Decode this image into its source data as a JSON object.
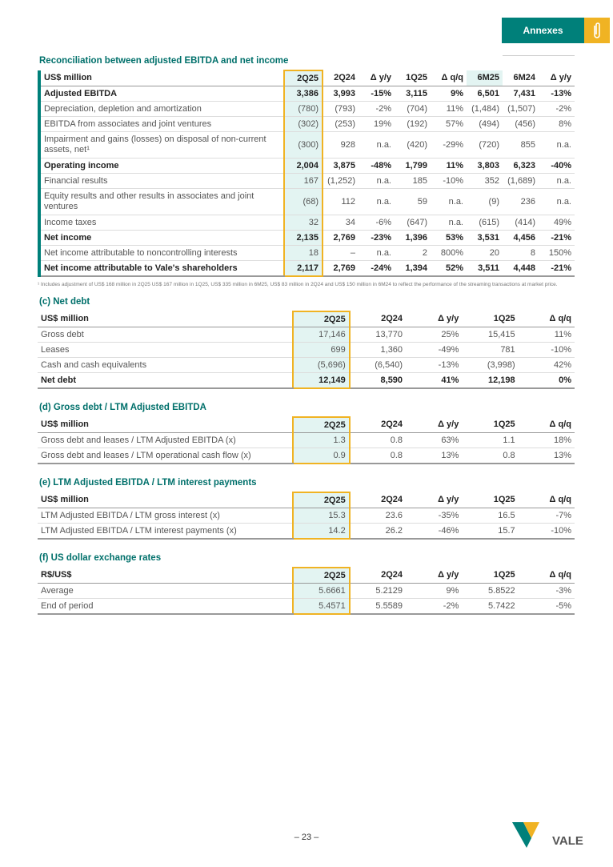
{
  "header": {
    "tab": "Annexes"
  },
  "sections": [
    {
      "title": "Reconciliation between adjusted EBITDA and net income",
      "columns": [
        "US$ million",
        "2Q25",
        "2Q24",
        "Δ y/y",
        "1Q25",
        "Δ q/q",
        "6M25",
        "6M24",
        "Δ y/y"
      ],
      "rows": [
        [
          "Adjusted EBITDA",
          "3,386",
          "3,993",
          "-15%",
          "3,115",
          "9%",
          "6,501",
          "7,431",
          "-13%"
        ],
        [
          "Depreciation, depletion and amortization",
          "(780)",
          "(793)",
          "-2%",
          "(704)",
          "11%",
          "(1,484)",
          "(1,507)",
          "-2%"
        ],
        [
          "EBITDA from associates and joint ventures",
          "(302)",
          "(253)",
          "19%",
          "(192)",
          "57%",
          "(494)",
          "(456)",
          "8%"
        ],
        [
          "Impairment and gains (losses) on disposal of non-current assets, net¹",
          "(300)",
          "928",
          "n.a.",
          "(420)",
          "-29%",
          "(720)",
          "855",
          "n.a."
        ],
        [
          "Operating income",
          "2,004",
          "3,875",
          "-48%",
          "1,799",
          "11%",
          "3,803",
          "6,323",
          "-40%"
        ],
        [
          "Financial results",
          "167",
          "(1,252)",
          "n.a.",
          "185",
          "-10%",
          "352",
          "(1,689)",
          "n.a."
        ],
        [
          "Equity results and other results in associates and joint ventures",
          "(68)",
          "112",
          "n.a.",
          "59",
          "n.a.",
          "(9)",
          "236",
          "n.a."
        ],
        [
          "Income taxes",
          "32",
          "34",
          "-6%",
          "(647)",
          "n.a.",
          "(615)",
          "(414)",
          "49%"
        ],
        [
          "Net income",
          "2,135",
          "2,769",
          "-23%",
          "1,396",
          "53%",
          "3,531",
          "4,456",
          "-21%"
        ],
        [
          "Net income attributable to noncontrolling interests",
          "18",
          "–",
          "n.a.",
          "2",
          "800%",
          "20",
          "8",
          "150%"
        ],
        [
          "Net income attributable to Vale's shareholders",
          "2,117",
          "2,769",
          "-24%",
          "1,394",
          "52%",
          "3,511",
          "4,448",
          "-21%"
        ]
      ],
      "footnote": "¹ Includes adjustment of US$ 168 million in 2Q25 US$ 167 million in 1Q25, US$ 335 million in 6M25, US$ 83 million in 2Q24 and US$ 150 million in 6M24 to reflect the performance of the streaming transactions at market price."
    },
    {
      "title": "(c) Net debt",
      "columns": [
        "US$ million",
        "2Q25",
        "2Q24",
        "Δ y/y",
        "1Q25",
        "Δ q/q"
      ],
      "rows": [
        [
          "Gross debt",
          "17,146",
          "13,770",
          "25%",
          "15,415",
          "11%"
        ],
        [
          "Leases",
          "699",
          "1,360",
          "-49%",
          "781",
          "-10%"
        ],
        [
          "Cash and cash equivalents",
          "(5,696)",
          "(6,540)",
          "-13%",
          "(3,998)",
          "42%"
        ],
        [
          "Net debt",
          "12,149",
          "8,590",
          "41%",
          "12,198",
          "0%"
        ]
      ]
    },
    {
      "title": "(d) Gross debt / LTM Adjusted EBITDA",
      "columns": [
        "US$ million",
        "2Q25",
        "2Q24",
        "Δ y/y",
        "1Q25",
        "Δ q/q"
      ],
      "rows": [
        [
          "Gross debt and leases / LTM Adjusted EBITDA (x)",
          "1.3",
          "0.8",
          "63%",
          "1.1",
          "18%"
        ],
        [
          "Gross debt and leases / LTM operational cash flow (x)",
          "0.9",
          "0.8",
          "13%",
          "0.8",
          "13%"
        ]
      ]
    },
    {
      "title": "(e) LTM Adjusted EBITDA / LTM interest payments",
      "columns": [
        "US$ million",
        "2Q25",
        "2Q24",
        "Δ y/y",
        "1Q25",
        "Δ q/q"
      ],
      "rows": [
        [
          "LTM Adjusted EBITDA / LTM gross interest (x)",
          "15.3",
          "23.6",
          "-35%",
          "16.5",
          "-7%"
        ],
        [
          "LTM Adjusted EBITDA / LTM interest payments (x)",
          "14.2",
          "26.2",
          "-46%",
          "15.7",
          "-10%"
        ]
      ]
    },
    {
      "title": "(f) US dollar exchange rates",
      "columns": [
        "R$/US$",
        "2Q25",
        "2Q24",
        "Δ y/y",
        "1Q25",
        "Δ q/q"
      ],
      "rows": [
        [
          "Average",
          "5.6661",
          "5.2129",
          "9%",
          "5.8522",
          "-3%"
        ],
        [
          "End of period",
          "5.4571",
          "5.5589",
          "-2%",
          "5.7422",
          "-5%"
        ]
      ]
    }
  ],
  "footer": {
    "page": "– 23 –",
    "logo": "VALE"
  }
}
